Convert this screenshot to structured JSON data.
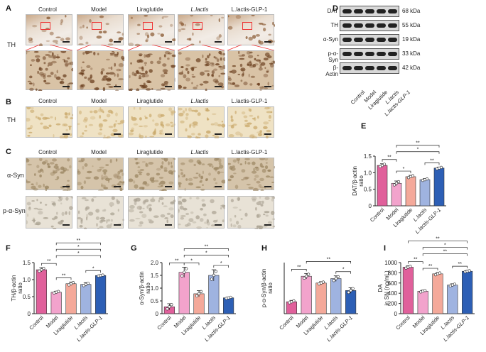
{
  "groups": [
    "Control",
    "Model",
    "Liraglutide",
    "L.lactis",
    "L.lactis-GLP-1"
  ],
  "panels": {
    "A": {
      "letter": "A",
      "row_label": "TH"
    },
    "B": {
      "letter": "B",
      "row_label": "TH"
    },
    "C": {
      "letter": "C",
      "row_labels": [
        "α-Syn",
        "p-α-Syn"
      ]
    },
    "D": {
      "letter": "D",
      "proteins": [
        "DAT",
        "TH",
        "α-Syn",
        "p-α-Syn",
        "β-Actin"
      ],
      "sizes": [
        "68 kDa",
        "55 kDa",
        "19 kDa",
        "33 kDa",
        "42 kDa"
      ]
    },
    "E": {
      "letter": "E"
    },
    "F": {
      "letter": "F"
    },
    "G": {
      "letter": "G"
    },
    "H": {
      "letter": "H"
    },
    "I": {
      "letter": "I"
    }
  },
  "colors": {
    "control": "#e0609b",
    "model": "#f2a3cc",
    "liraglutide": "#f4a99a",
    "llactis": "#9fb3e0",
    "llactis_glp1": "#2d5fb5",
    "scale_box": "#e33333"
  },
  "chart_data": [
    {
      "panel": "E",
      "type": "bar",
      "categories": [
        "Control",
        "Model",
        "Liraglutide",
        "L.lactis",
        "L.lactis-GLP-1"
      ],
      "values": [
        1.22,
        0.68,
        0.88,
        0.79,
        1.14
      ],
      "errors": [
        0.05,
        0.07,
        0.04,
        0.03,
        0.03
      ],
      "ylabel": "DAT/β-actin ratio",
      "ylim": [
        0,
        1.5
      ],
      "yticks": [
        0,
        0.5,
        1.0,
        1.5
      ],
      "ytick_labels": [
        "0",
        "0.5",
        "1.0",
        "1.5"
      ],
      "sig": [
        {
          "from": 0,
          "to": 1,
          "label": "**",
          "level": 0
        },
        {
          "from": 1,
          "to": 2,
          "label": "*",
          "level": 0
        },
        {
          "from": 3,
          "to": 4,
          "label": "**",
          "level": 0
        },
        {
          "from": 1,
          "to": 4,
          "label": "*",
          "level": 1
        },
        {
          "from": 1,
          "to": 4,
          "label": "**",
          "level": 2
        }
      ]
    },
    {
      "panel": "F",
      "type": "bar",
      "categories": [
        "Control",
        "Model",
        "Liraglutide",
        "L.lactis",
        "L.lactis-GLP-1"
      ],
      "values": [
        1.29,
        0.63,
        0.88,
        0.86,
        1.12
      ],
      "errors": [
        0.06,
        0.03,
        0.05,
        0.05,
        0.02
      ],
      "ylabel": "TH/β-actin ratio",
      "ylim": [
        0,
        1.5
      ],
      "yticks": [
        0,
        0.5,
        1.0,
        1.5
      ],
      "ytick_labels": [
        "0",
        "0.5",
        "1.0",
        "1.5"
      ],
      "sig": [
        {
          "from": 0,
          "to": 1,
          "label": "**",
          "level": 0
        },
        {
          "from": 1,
          "to": 2,
          "label": "**",
          "level": 0
        },
        {
          "from": 3,
          "to": 4,
          "label": "*",
          "level": 0
        },
        {
          "from": 1,
          "to": 4,
          "label": "*",
          "level": 1
        },
        {
          "from": 1,
          "to": 4,
          "label": "*",
          "level": 2
        },
        {
          "from": 1,
          "to": 4,
          "label": "**",
          "level": 3
        }
      ]
    },
    {
      "panel": "G",
      "type": "bar",
      "categories": [
        "Control",
        "Model",
        "Liraglutide",
        "L.lactis",
        "L.lactis-GLP-1"
      ],
      "values": [
        0.27,
        1.62,
        0.78,
        1.5,
        0.62
      ],
      "errors": [
        0.12,
        0.2,
        0.12,
        0.22,
        0.03
      ],
      "ylabel": "α-Syn/β-actin ratio",
      "ylim": [
        0,
        2.0
      ],
      "yticks": [
        0,
        0.5,
        1.0,
        1.5,
        2.0
      ],
      "ytick_labels": [
        "0",
        "0.5",
        "1.0",
        "1.5",
        "2.0"
      ],
      "sig": [
        {
          "from": 0,
          "to": 1,
          "label": "**",
          "level": 0
        },
        {
          "from": 1,
          "to": 2,
          "label": "*",
          "level": 0
        },
        {
          "from": 3,
          "to": 4,
          "label": "*",
          "level": 0
        },
        {
          "from": 1,
          "to": 4,
          "label": "*",
          "level": 1
        },
        {
          "from": 1,
          "to": 4,
          "label": "**",
          "level": 2
        }
      ]
    },
    {
      "panel": "H",
      "type": "bar",
      "categories": [
        "Control",
        "Model",
        "Liraglutide",
        "L.lactis",
        "L.lactis-GLP-1"
      ],
      "values": [
        0.35,
        1.1,
        0.9,
        1.03,
        0.68
      ],
      "errors": [
        0.04,
        0.08,
        0.04,
        0.08,
        0.08
      ],
      "ylabel": "p-α-Syn/β-actin ratio",
      "ylim": [
        0,
        1.5
      ],
      "yticks": [],
      "ytick_labels": [],
      "sig": [
        {
          "from": 0,
          "to": 1,
          "label": "**",
          "level": 0
        },
        {
          "from": 3,
          "to": 4,
          "label": "*",
          "level": 0
        },
        {
          "from": 1,
          "to": 4,
          "label": "**",
          "level": 1
        }
      ]
    },
    {
      "panel": "I",
      "type": "bar",
      "categories": [
        "Control",
        "Model",
        "Liraglutide",
        "L.lactis",
        "L.lactis-GLP-1"
      ],
      "values": [
        910,
        440,
        780,
        560,
        830
      ],
      "errors": [
        25,
        20,
        25,
        25,
        15
      ],
      "ylabel": "DA in SN (ng/mL)",
      "ylim": [
        0,
        1000
      ],
      "yticks": [
        0,
        200,
        400,
        600,
        800,
        1000
      ],
      "ytick_labels": [
        "0",
        "200",
        "400",
        "600",
        "800",
        "1000"
      ],
      "sig": [
        {
          "from": 0,
          "to": 1,
          "label": "**",
          "level": 0
        },
        {
          "from": 1,
          "to": 2,
          "label": "**",
          "level": 0
        },
        {
          "from": 3,
          "to": 4,
          "label": "**",
          "level": 0
        },
        {
          "from": 1,
          "to": 4,
          "label": "**",
          "level": 1
        },
        {
          "from": 1,
          "to": 4,
          "label": "*",
          "level": 2
        },
        {
          "from": 0,
          "to": 4,
          "label": "**",
          "level": 3
        }
      ]
    }
  ]
}
